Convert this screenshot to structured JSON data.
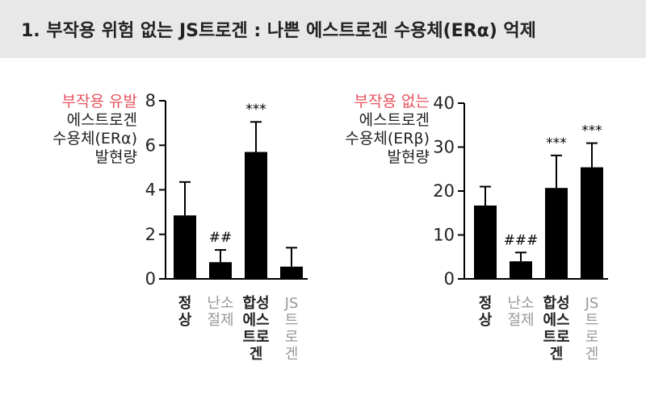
{
  "header": {
    "title": "1. 부작용 위험 없는 JS트로겐 : 나쁜 에스트로겐 수용체(ERα) 억제"
  },
  "colors": {
    "highlight": "#e8545f",
    "bar": "#000000",
    "text": "#222222",
    "muted_label": "#999999",
    "header_bg": "#e8e8e8"
  },
  "chart_data": [
    {
      "type": "bar",
      "ylabel_highlight": "부작용 유발",
      "ylabel_lines": [
        "에스트로겐",
        "수용체(ERα)",
        "발현량"
      ],
      "categories": [
        {
          "lines": [
            "정",
            "상"
          ],
          "muted": false
        },
        {
          "lines": [
            "난소",
            "절제"
          ],
          "muted": true
        },
        {
          "lines": [
            "합성",
            "에스",
            "트로",
            "겐"
          ],
          "muted": false
        },
        {
          "lines": [
            "JS",
            "트",
            "로",
            "겐"
          ],
          "muted": true
        }
      ],
      "values": [
        2.85,
        0.75,
        5.7,
        0.55
      ],
      "errors": [
        1.5,
        0.55,
        1.35,
        0.85
      ],
      "annotations": [
        "",
        "##",
        "***",
        ""
      ],
      "ylim": [
        0,
        8
      ],
      "yticks": [
        "0",
        "2",
        "4",
        "6",
        "8"
      ]
    },
    {
      "type": "bar",
      "ylabel_highlight": "부작용 없는",
      "ylabel_lines": [
        "에스트로겐",
        "수용체(ERβ)",
        "발현량"
      ],
      "categories": [
        {
          "lines": [
            "정",
            "상"
          ],
          "muted": false
        },
        {
          "lines": [
            "난소",
            "절제"
          ],
          "muted": true
        },
        {
          "lines": [
            "합성",
            "에스",
            "트로",
            "겐"
          ],
          "muted": false
        },
        {
          "lines": [
            "JS",
            "트",
            "로",
            "겐"
          ],
          "muted": true
        }
      ],
      "values": [
        16.7,
        4.0,
        20.7,
        25.4
      ],
      "errors": [
        4.3,
        2.0,
        7.4,
        5.5
      ],
      "annotations": [
        "",
        "###",
        "***",
        "***"
      ],
      "ylim": [
        0,
        40
      ],
      "yticks": [
        "0",
        "10",
        "20",
        "30",
        "40"
      ]
    }
  ]
}
